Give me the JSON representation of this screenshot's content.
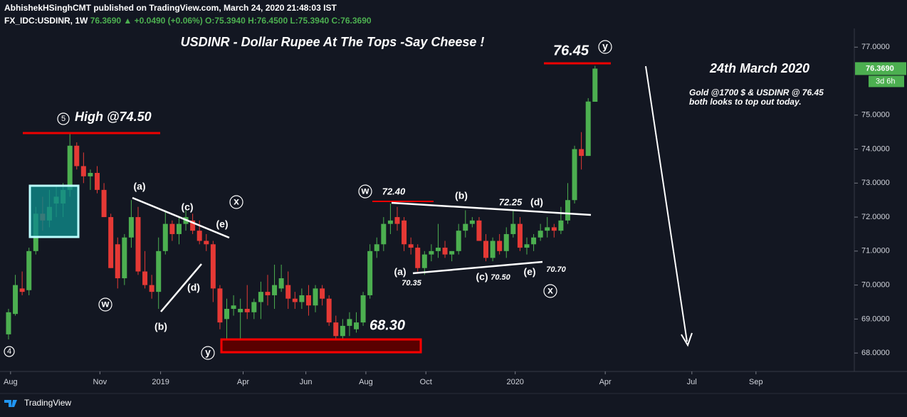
{
  "header": {
    "publisher": "AbhishekHSinghCMT published on TradingView.com, March 24, 2020 21:48:03 IST",
    "symbol": "FX_IDC:USDINR, 1W",
    "price": "76.3690",
    "change": "▲ +0.0490 (+0.06%)",
    "ohlc": "O:75.3940 H:76.4500 L:75.3940 C:76.3690"
  },
  "chart_data": {
    "type": "candlestick",
    "title": "USDINR - Dollar Rupee At The Tops -Say Cheese !",
    "up_color": "#4caf50",
    "down_color": "#e53935",
    "open": [
      68.55,
      69.15,
      69.9,
      69.85,
      71.0,
      72.1,
      71.9,
      72.4,
      72.4,
      72.8,
      74.1,
      73.5,
      73.2,
      73.3,
      72.8,
      72.0,
      71.2,
      70.2,
      71.4,
      72.0,
      70.4,
      70.0,
      69.8,
      71.0,
      71.8,
      71.5,
      71.8,
      71.9,
      71.6,
      71.3,
      71.2,
      69.9,
      69.0,
      69.3,
      69.2,
      69.3,
      69.2,
      69.5,
      69.8,
      69.7,
      69.9,
      70.0,
      69.6,
      69.5,
      69.7,
      69.4,
      69.9,
      69.6,
      68.9,
      68.5,
      68.8,
      68.7,
      68.9,
      69.7,
      71.0,
      71.2,
      71.8,
      72.0,
      71.9,
      71.2,
      71.1,
      70.5,
      70.9,
      71.0,
      71.1,
      70.9,
      71.0,
      71.6,
      71.8,
      71.9,
      71.3,
      70.8,
      71.3,
      71.0,
      71.5,
      71.8,
      71.1,
      71.2,
      71.4,
      71.6,
      71.7,
      71.6,
      71.9,
      72.5,
      74.0,
      73.8,
      75.394
    ],
    "high": [
      69.3,
      70.3,
      70.4,
      71.1,
      72.3,
      72.6,
      72.8,
      72.9,
      73.0,
      74.5,
      74.2,
      73.9,
      73.4,
      73.5,
      73.0,
      72.1,
      71.4,
      71.5,
      72.5,
      72.3,
      71.0,
      70.3,
      71.4,
      72.2,
      71.9,
      72.0,
      72.2,
      72.1,
      71.9,
      71.5,
      71.3,
      70.0,
      69.6,
      69.7,
      69.6,
      70.0,
      69.6,
      70.1,
      70.3,
      70.6,
      70.6,
      70.4,
      69.8,
      69.9,
      70.0,
      70.0,
      70.0,
      69.7,
      69.1,
      69.0,
      69.2,
      69.2,
      69.8,
      71.2,
      71.4,
      72.0,
      72.4,
      72.3,
      72.0,
      71.4,
      71.2,
      71.0,
      71.2,
      71.8,
      71.3,
      71.0,
      71.8,
      72.2,
      72.0,
      72.0,
      71.5,
      71.4,
      71.5,
      71.7,
      72.2,
      72.0,
      71.4,
      71.5,
      71.8,
      72.0,
      71.8,
      72.3,
      73.0,
      74.1,
      74.5,
      75.5,
      76.45
    ],
    "low": [
      68.4,
      69.1,
      69.7,
      69.7,
      70.9,
      71.6,
      71.7,
      72.0,
      72.0,
      72.6,
      73.4,
      73.0,
      72.8,
      72.7,
      72.0,
      70.5,
      69.9,
      70.0,
      71.1,
      70.3,
      69.9,
      69.6,
      69.3,
      70.9,
      71.3,
      71.2,
      71.6,
      71.5,
      71.2,
      71.0,
      69.5,
      68.7,
      68.3,
      69.1,
      68.4,
      69.0,
      69.0,
      69.0,
      69.4,
      69.3,
      69.8,
      69.3,
      69.3,
      69.3,
      69.1,
      69.2,
      69.4,
      68.8,
      68.3,
      68.4,
      68.5,
      68.6,
      68.8,
      69.6,
      70.8,
      71.0,
      71.5,
      71.6,
      71.0,
      70.9,
      70.4,
      70.3,
      70.7,
      70.8,
      70.8,
      70.7,
      70.9,
      71.4,
      71.7,
      71.3,
      70.7,
      70.7,
      70.9,
      70.8,
      71.4,
      71.0,
      70.9,
      71.0,
      71.3,
      71.4,
      71.4,
      71.5,
      71.8,
      72.4,
      73.4,
      73.8,
      75.394
    ],
    "close": [
      69.2,
      70.0,
      69.8,
      71.0,
      72.1,
      71.9,
      72.3,
      72.6,
      72.8,
      74.1,
      73.5,
      73.2,
      73.3,
      72.8,
      72.0,
      70.5,
      70.2,
      71.4,
      72.0,
      70.4,
      70.0,
      69.8,
      71.0,
      71.8,
      71.5,
      71.8,
      72.0,
      71.6,
      71.3,
      71.2,
      69.9,
      68.9,
      69.3,
      69.4,
      69.3,
      69.2,
      69.5,
      69.8,
      69.7,
      70.0,
      70.2,
      69.6,
      69.5,
      69.7,
      69.4,
      69.9,
      69.6,
      68.9,
      68.5,
      68.8,
      69.0,
      68.9,
      69.7,
      71.0,
      71.2,
      71.8,
      71.9,
      71.8,
      71.2,
      71.1,
      70.5,
      70.9,
      71.0,
      71.1,
      70.9,
      71.0,
      71.6,
      71.8,
      71.9,
      71.3,
      70.8,
      71.3,
      71.0,
      71.5,
      71.8,
      71.1,
      71.2,
      71.4,
      71.6,
      71.7,
      71.6,
      71.9,
      72.5,
      74.0,
      73.8,
      75.4,
      76.369
    ],
    "xlim": [
      -1.25,
      123.5
    ],
    "xticks": [
      {
        "value": 0.3,
        "label": "Aug"
      },
      {
        "value": 13.4,
        "label": "Nov"
      },
      {
        "value": 22.3,
        "label": "2019"
      },
      {
        "value": 34.4,
        "label": "Apr"
      },
      {
        "value": 43.6,
        "label": "Jun"
      },
      {
        "value": 52.4,
        "label": "Aug"
      },
      {
        "value": 61.2,
        "label": "Oct"
      },
      {
        "value": 74.3,
        "label": "2020"
      },
      {
        "value": 87.5,
        "label": "Apr"
      },
      {
        "value": 100.2,
        "label": "Jul"
      },
      {
        "value": 109.6,
        "label": "Sep"
      }
    ],
    "ylim": [
      67.5,
      77.55
    ],
    "yticks": [
      {
        "value": 68,
        "label": "68.0000"
      },
      {
        "value": 69,
        "label": "69.0000"
      },
      {
        "value": 70,
        "label": "70.0000"
      },
      {
        "value": 71,
        "label": "71.0000"
      },
      {
        "value": 72,
        "label": "72.0000"
      },
      {
        "value": 73,
        "label": "73.0000"
      },
      {
        "value": 74,
        "label": "74.0000"
      },
      {
        "value": 75,
        "label": "75.0000"
      },
      {
        "value": 77,
        "label": "77.0000"
      }
    ],
    "last_price": {
      "value": 76.369,
      "label": "76.3690"
    },
    "countdown": "3d 6h",
    "annotations": [
      "76.45",
      "y",
      "High @74.50",
      "5",
      "24th March 2020",
      "Gold @1700 $ & USDINR @ 76.45  both looks to top out today.",
      "(a)",
      "(c)",
      "(e)",
      "x",
      "(d)",
      "(b)",
      "w",
      "y",
      "4",
      "w",
      "72.40",
      "(b)",
      "72.25",
      "(d)",
      "(a)",
      "70.35",
      "(c)",
      "70.50",
      "(e)",
      "70.70",
      "x",
      "68.30"
    ]
  },
  "footer": {
    "brand": "TradingView"
  }
}
